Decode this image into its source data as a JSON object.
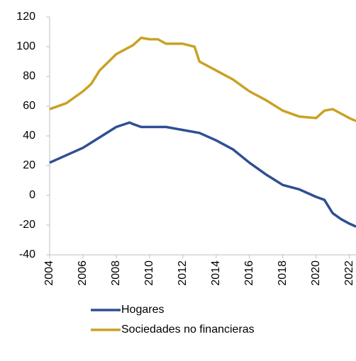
{
  "chart_data": {
    "type": "line",
    "series": [
      {
        "name": "Hogares",
        "color": "#2f4f93",
        "x": [
          2004,
          2005,
          2006,
          2007,
          2008,
          2008.8,
          2009,
          2009.5,
          2010,
          2011,
          2012,
          2013,
          2014,
          2015,
          2016,
          2017,
          2018,
          2019,
          2020,
          2020.5,
          2021,
          2021.5,
          2022,
          2022.4
        ],
        "values": [
          22,
          27,
          32,
          39,
          46,
          49,
          48,
          46,
          46,
          46,
          44,
          42,
          37,
          31,
          22,
          14,
          7,
          4,
          -1,
          -3,
          -12,
          -16,
          -19,
          -21
        ]
      },
      {
        "name": "Sociedades no financieras",
        "color": "#c9a224",
        "x": [
          2004,
          2005,
          2006,
          2006.5,
          2007,
          2008,
          2009,
          2009.5,
          2010,
          2010.5,
          2011,
          2012,
          2012.7,
          2013,
          2014,
          2015,
          2016,
          2017,
          2018,
          2019,
          2020,
          2020.5,
          2021,
          2021.5,
          2022,
          2022.4
        ],
        "values": [
          58,
          62,
          70,
          75,
          84,
          95,
          101,
          106,
          105,
          105,
          102,
          102,
          100,
          90,
          84,
          78,
          70,
          64,
          57,
          53,
          52,
          57,
          58,
          55,
          52,
          50
        ]
      }
    ],
    "xlim": [
      2004,
      2022.4
    ],
    "xticks": [
      2004,
      2006,
      2008,
      2010,
      2012,
      2014,
      2016,
      2018,
      2020,
      2022
    ],
    "ylim": [
      -40,
      120
    ],
    "yticks": [
      -40,
      -20,
      0,
      20,
      40,
      60,
      80,
      100,
      120
    ],
    "grid": false,
    "legend": "bottom"
  }
}
